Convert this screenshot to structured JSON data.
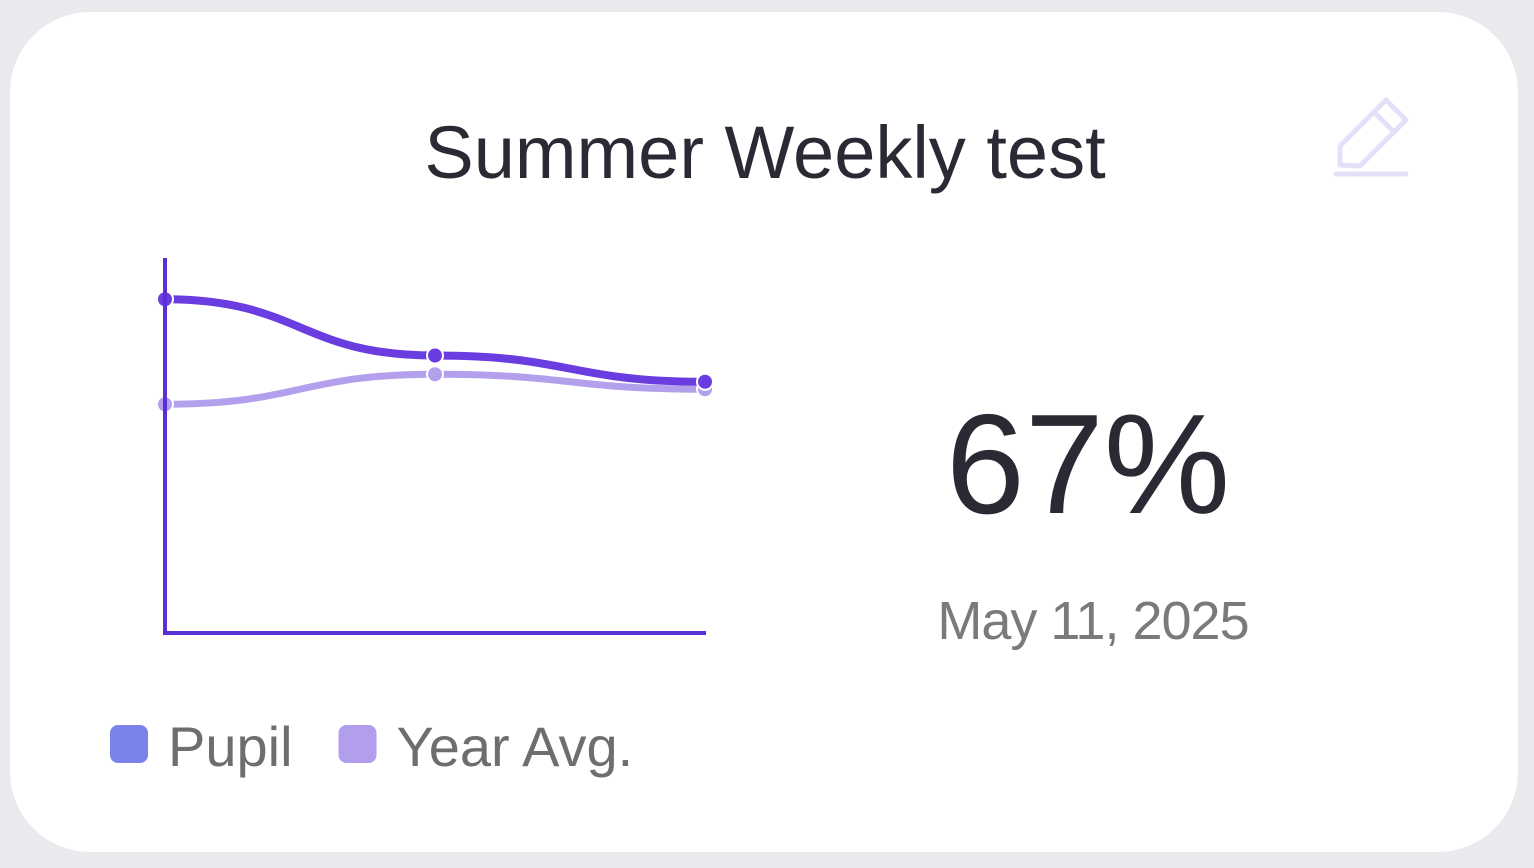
{
  "chart_data": {
    "type": "line",
    "title": "Summer Weekly test",
    "categories": [
      null,
      null,
      null
    ],
    "series": [
      {
        "name": "Pupil",
        "color": "#6a3de0",
        "legend_color": "#7b83eb",
        "values": [
          89,
          74,
          67
        ]
      },
      {
        "name": "Year Avg.",
        "color": "#b3a0ec",
        "legend_color": "#b39ded",
        "values": [
          61,
          69,
          65
        ]
      }
    ],
    "ylim": [
      0,
      100
    ],
    "score": "67%",
    "date": "May 11, 2025"
  }
}
